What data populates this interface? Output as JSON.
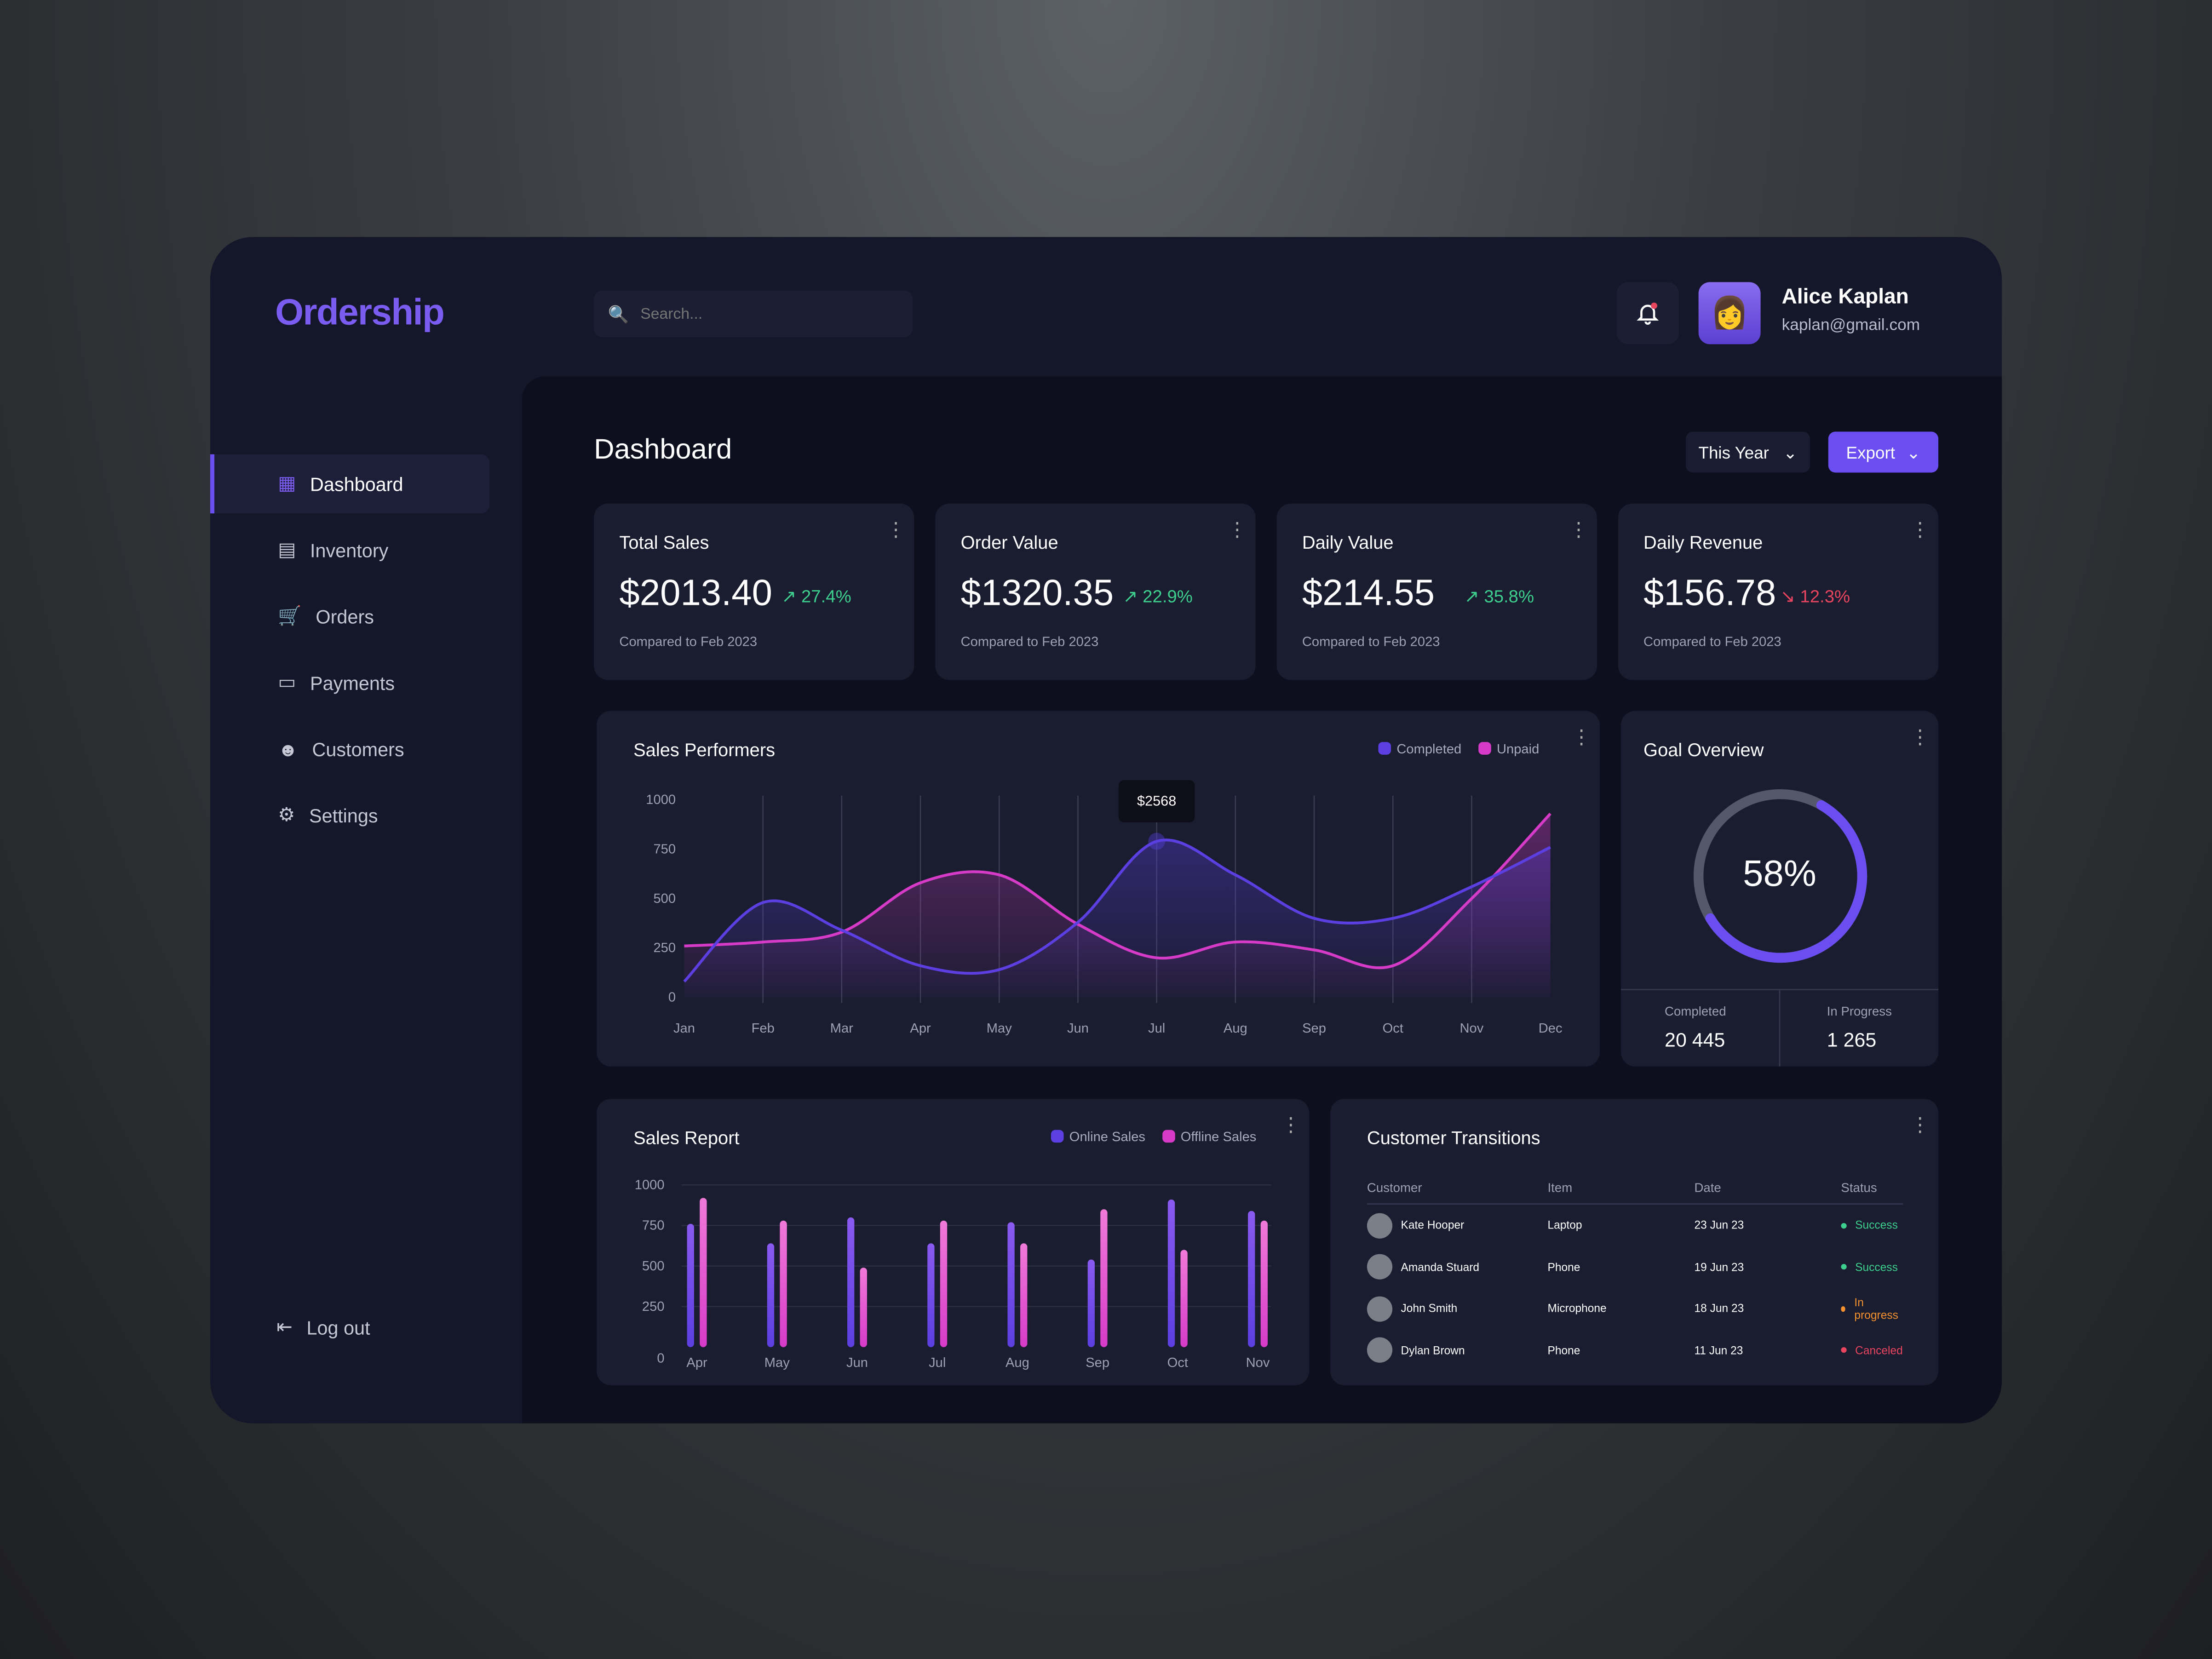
{
  "app": {
    "logo": "Ordership"
  },
  "search": {
    "placeholder": "Search..."
  },
  "user": {
    "name": "Alice Kaplan",
    "email": "kaplan@gmail.com"
  },
  "sidebar": {
    "items": [
      {
        "label": "Dashboard",
        "icon": "grid-icon",
        "active": true
      },
      {
        "label": "Inventory",
        "icon": "store-icon"
      },
      {
        "label": "Orders",
        "icon": "cart-icon"
      },
      {
        "label": "Payments",
        "icon": "card-icon"
      },
      {
        "label": "Customers",
        "icon": "users-icon"
      },
      {
        "label": "Settings",
        "icon": "gear-icon"
      }
    ],
    "logout": "Log out"
  },
  "header": {
    "title": "Dashboard",
    "period": "This Year",
    "export": "Export"
  },
  "kpis": [
    {
      "title": "Total Sales",
      "value": "$2013.40",
      "change": "27.4%",
      "trend": "up",
      "compare": "Compared to Feb 2023"
    },
    {
      "title": "Order Value",
      "value": "$1320.35",
      "change": "22.9%",
      "trend": "up",
      "compare": "Compared to Feb 2023"
    },
    {
      "title": "Daily Value",
      "value": "$214.55",
      "change": "35.8%",
      "trend": "up",
      "compare": "Compared to Feb 2023"
    },
    {
      "title": "Daily Revenue",
      "value": "$156.78",
      "change": "12.3%",
      "trend": "down",
      "compare": "Compared to Feb 2023"
    }
  ],
  "colors": {
    "accent": "#6b4ef2",
    "completed": "#5b3fe0",
    "unpaid": "#d63bc8",
    "success": "#3ecf8e",
    "progress": "#f5922f",
    "canceled": "#e8455f"
  },
  "chart_data": [
    {
      "type": "line",
      "title": "Sales Performers",
      "categories": [
        "Jan",
        "Feb",
        "Mar",
        "Apr",
        "May",
        "Jun",
        "Jul",
        "Aug",
        "Sep",
        "Oct",
        "Nov",
        "Dec"
      ],
      "ylim": [
        0,
        1000
      ],
      "yticks": [
        "1000",
        "750",
        "500",
        "250",
        "0"
      ],
      "grid": "vertical",
      "legend": "top-right",
      "tooltip": "$2568",
      "series": [
        {
          "name": "Completed",
          "values": [
            80,
            480,
            340,
            160,
            140,
            380,
            790,
            620,
            400,
            400,
            560,
            760
          ]
        },
        {
          "name": "Unpaid",
          "values": [
            260,
            280,
            330,
            580,
            620,
            370,
            200,
            280,
            240,
            160,
            500,
            930
          ]
        }
      ]
    },
    {
      "type": "bar",
      "title": "Sales Report",
      "categories": [
        "Apr",
        "May",
        "Jun",
        "Jul",
        "Aug",
        "Sep",
        "Oct",
        "Nov"
      ],
      "ylim": [
        0,
        1000
      ],
      "yticks": [
        "1000",
        "750",
        "500",
        "250",
        "0"
      ],
      "legend": "top-right",
      "series": [
        {
          "name": "Online Sales",
          "values": [
            760,
            640,
            800,
            640,
            770,
            540,
            910,
            840
          ]
        },
        {
          "name": "Offline Sales",
          "values": [
            920,
            780,
            490,
            780,
            640,
            850,
            600,
            780
          ]
        }
      ]
    }
  ],
  "goal": {
    "title": "Goal Overview",
    "percent": 58,
    "percent_label": "58%",
    "completed_label": "Completed",
    "completed": "20 445",
    "progress_label": "In Progress",
    "progress": "1 265"
  },
  "transactions": {
    "title": "Customer Transitions",
    "headers": [
      "Customer",
      "Item",
      "Date",
      "Status"
    ],
    "rows": [
      {
        "customer": "Kate Hooper",
        "item": "Laptop",
        "date": "23 Jun 23",
        "status": "Success",
        "kind": "success"
      },
      {
        "customer": "Amanda Stuard",
        "item": "Phone",
        "date": "19 Jun 23",
        "status": "Success",
        "kind": "success"
      },
      {
        "customer": "John Smith",
        "item": "Microphone",
        "date": "18 Jun 23",
        "status": "In progress",
        "kind": "progress"
      },
      {
        "customer": "Dylan Brown",
        "item": "Phone",
        "date": "11 Jun 23",
        "status": "Canceled",
        "kind": "canceled"
      }
    ]
  }
}
